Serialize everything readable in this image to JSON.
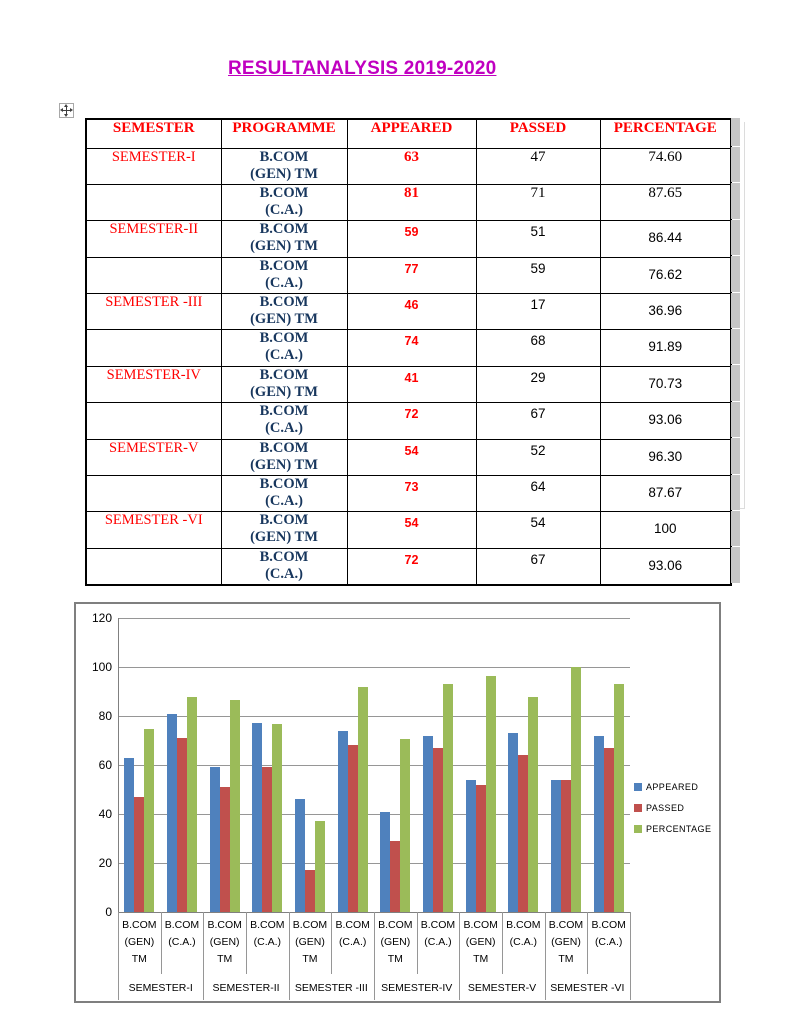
{
  "title": {
    "text": "RESULTANALYSIS 2019-2020",
    "color": "#C000C0"
  },
  "icons": {
    "table_move_handle": "move-cross-icon"
  },
  "table": {
    "headers": [
      "SEMESTER",
      "PROGRAMME",
      "APPEARED",
      "PASSED",
      "PERCENTAGE"
    ],
    "rows": [
      {
        "semester": "SEMESTER-I",
        "programme_line1": "B.COM",
        "programme_line2": "(GEN) TM",
        "appeared": "63",
        "passed": "47",
        "percentage": "74.60"
      },
      {
        "semester": "",
        "programme_line1": "B.COM",
        "programme_line2": "(C.A.)",
        "appeared": "81",
        "passed": "71",
        "percentage": "87.65"
      },
      {
        "semester": "SEMESTER-II",
        "programme_line1": "B.COM",
        "programme_line2": "(GEN) TM",
        "appeared": "59",
        "passed": "51",
        "percentage": "86.44"
      },
      {
        "semester": "",
        "programme_line1": "B.COM",
        "programme_line2": "(C.A.)",
        "appeared": "77",
        "passed": "59",
        "percentage": "76.62"
      },
      {
        "semester": "SEMESTER -III",
        "programme_line1": "B.COM",
        "programme_line2": "(GEN) TM",
        "appeared": "46",
        "passed": "17",
        "percentage": "36.96"
      },
      {
        "semester": "",
        "programme_line1": "B.COM",
        "programme_line2": "(C.A.)",
        "appeared": "74",
        "passed": "68",
        "percentage": "91.89"
      },
      {
        "semester": "SEMESTER-IV",
        "programme_line1": "B.COM",
        "programme_line2": "(GEN) TM",
        "appeared": "41",
        "passed": "29",
        "percentage": "70.73"
      },
      {
        "semester": "",
        "programme_line1": "B.COM",
        "programme_line2": "(C.A.)",
        "appeared": "72",
        "passed": "67",
        "percentage": "93.06"
      },
      {
        "semester": "SEMESTER-V",
        "programme_line1": "B.COM",
        "programme_line2": "(GEN) TM",
        "appeared": "54",
        "passed": "52",
        "percentage": "96.30"
      },
      {
        "semester": "",
        "programme_line1": "B.COM",
        "programme_line2": "(C.A.)",
        "appeared": "73",
        "passed": "64",
        "percentage": "87.67"
      },
      {
        "semester": "SEMESTER -VI",
        "programme_line1": "B.COM",
        "programme_line2": "(GEN) TM",
        "appeared": "54",
        "passed": "54",
        "percentage": "100"
      },
      {
        "semester": "",
        "programme_line1": "B.COM",
        "programme_line2": "(C.A.)",
        "appeared": "72",
        "passed": "67",
        "percentage": "93.06"
      }
    ]
  },
  "chart_data": {
    "type": "bar",
    "title": "",
    "xlabel": "",
    "ylabel": "",
    "ylim": [
      0,
      120
    ],
    "ytick_step": 20,
    "grid": true,
    "legend_position": "right",
    "grid_color": "#969696",
    "groups": [
      "SEMESTER-I",
      "SEMESTER-II",
      "SEMESTER -III",
      "SEMESTER-IV",
      "SEMESTER-V",
      "SEMESTER -VI"
    ],
    "categories": [
      {
        "lines": [
          "B.COM",
          "(GEN)",
          "TM"
        ]
      },
      {
        "lines": [
          "B.COM",
          "(C.A.)"
        ]
      },
      {
        "lines": [
          "B.COM",
          "(GEN)",
          "TM"
        ]
      },
      {
        "lines": [
          "B.COM",
          "(C.A.)"
        ]
      },
      {
        "lines": [
          "B.COM",
          "(GEN)",
          "TM"
        ]
      },
      {
        "lines": [
          "B.COM",
          "(C.A.)"
        ]
      },
      {
        "lines": [
          "B.COM",
          "(GEN)",
          "TM"
        ]
      },
      {
        "lines": [
          "B.COM",
          "(C.A.)"
        ]
      },
      {
        "lines": [
          "B.COM",
          "(GEN)",
          "TM"
        ]
      },
      {
        "lines": [
          "B.COM",
          "(C.A.)"
        ]
      },
      {
        "lines": [
          "B.COM",
          "(GEN)",
          "TM"
        ]
      },
      {
        "lines": [
          "B.COM",
          "(C.A.)"
        ]
      }
    ],
    "series": [
      {
        "name": "APPEARED",
        "color": "#4F81BD",
        "values": [
          63,
          81,
          59,
          77,
          46,
          74,
          41,
          72,
          54,
          73,
          54,
          72
        ]
      },
      {
        "name": "PASSED",
        "color": "#C0504D",
        "values": [
          47,
          71,
          51,
          59,
          17,
          68,
          29,
          67,
          52,
          64,
          54,
          67
        ]
      },
      {
        "name": "PERCENTAGE",
        "color": "#9BBB59",
        "values": [
          74.6,
          87.65,
          86.44,
          76.62,
          36.96,
          91.89,
          70.73,
          93.06,
          96.3,
          87.67,
          100,
          93.06
        ]
      }
    ]
  }
}
